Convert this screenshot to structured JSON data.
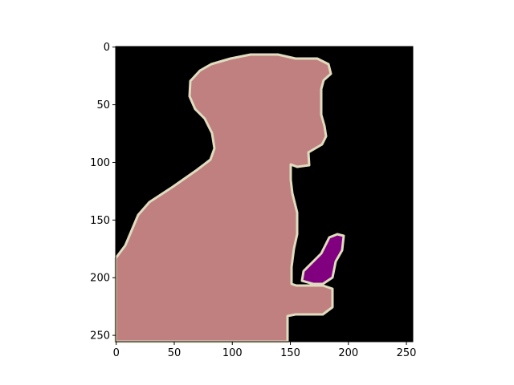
{
  "figure": {
    "x_ticks": [
      "0",
      "50",
      "100",
      "150",
      "200",
      "250"
    ],
    "y_ticks": [
      "0",
      "50",
      "100",
      "150",
      "200",
      "250"
    ],
    "x_range": [
      -0.5,
      255.5
    ],
    "y_range": [
      -0.5,
      255.5
    ],
    "colors": {
      "background": "#000000",
      "person": "#c0807f",
      "boundary": "#e0dcc0",
      "object": "#800080",
      "axes": "#000000"
    }
  }
}
